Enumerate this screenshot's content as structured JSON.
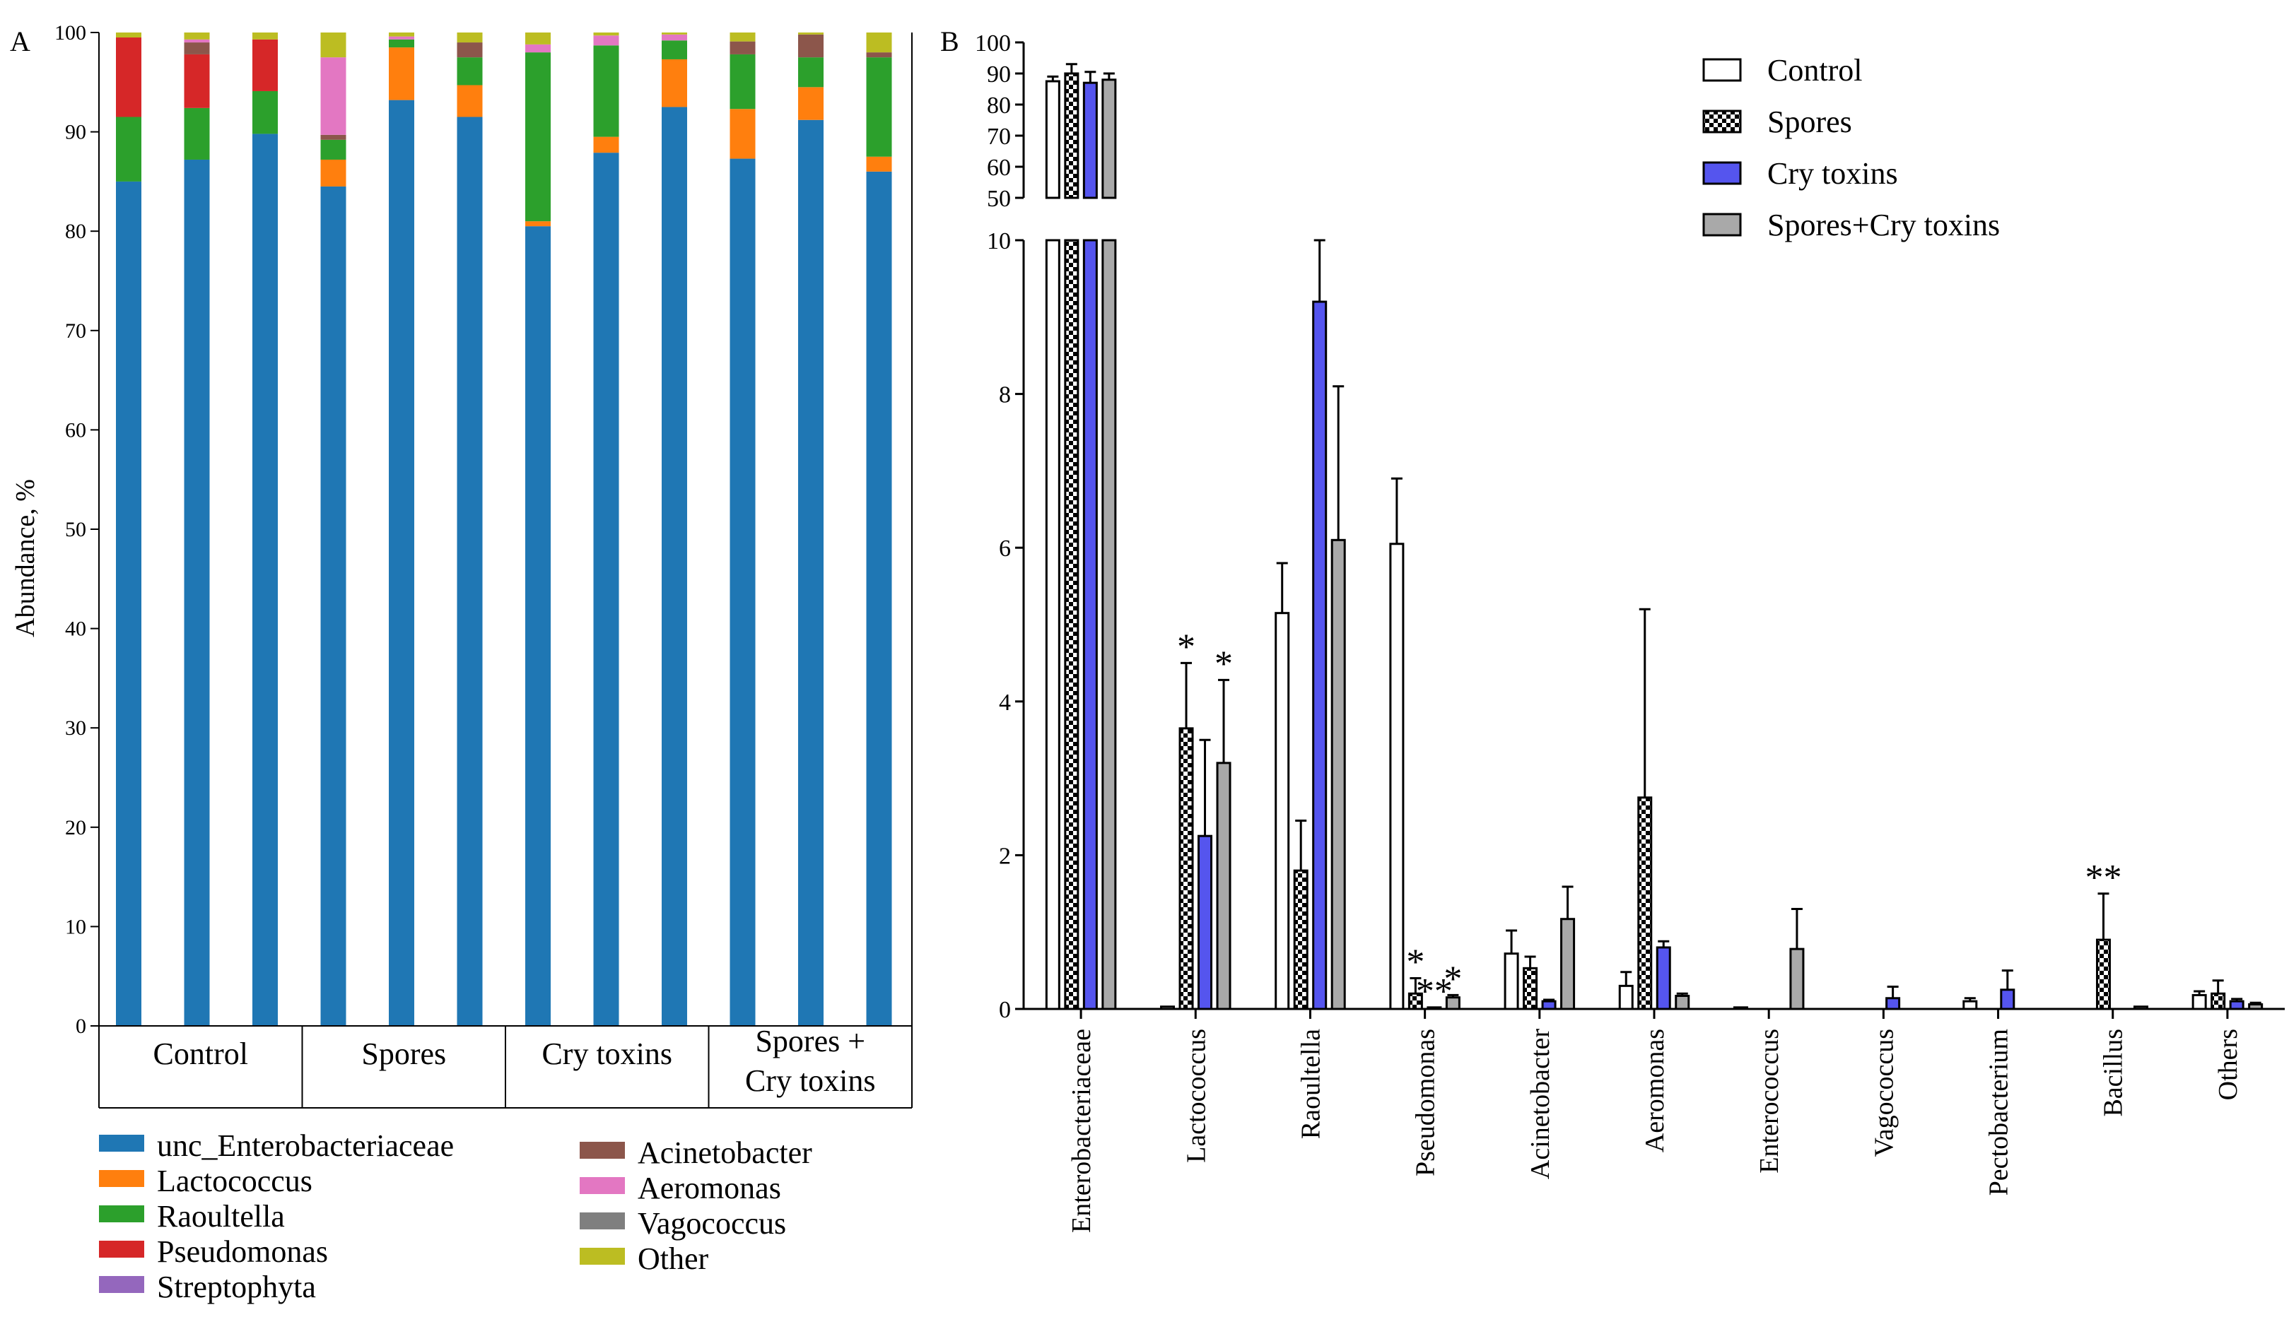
{
  "colors": {
    "unc_Enterobacteriaceae": "#1f77b4",
    "Lactococcus": "#ff7f0e",
    "Raoultella": "#2ca02c",
    "Pseudomonas": "#d62728",
    "Streptophyta": "#9467bd",
    "Acinetobacter": "#8c564b",
    "Aeromonas": "#e377c2",
    "Vagococcus": "#7f7f7f",
    "Other": "#bcbd22",
    "Control": "#ffffff",
    "Spores": "pattern-checker",
    "Cry toxins": "#5555ee",
    "Spores+Cry toxins": "#a9a9a9"
  },
  "chart_data": [
    {
      "panel": "A",
      "type": "bar",
      "stacked": true,
      "title": "",
      "ylabel": "Abundance, %",
      "ylim": [
        0,
        100
      ],
      "yticks": [
        "0",
        "10",
        "20",
        "30",
        "40",
        "50",
        "60",
        "70",
        "80",
        "90",
        "100"
      ],
      "groups": [
        "Control",
        "Spores",
        "Cry toxins",
        "Spores +\nCry toxins"
      ],
      "group_lines": [
        [
          "Control"
        ],
        [
          "Spores"
        ],
        [
          "Cry toxins"
        ],
        [
          "Spores +",
          "Cry toxins"
        ]
      ],
      "legend": [
        "unc_Enterobacteriaceae",
        "Lactococcus",
        "Raoultella",
        "Pseudomonas",
        "Streptophyta",
        "Acinetobacter",
        "Aeromonas",
        "Vagococcus",
        "Other"
      ],
      "legend_position": "bottom",
      "stack_order": [
        "unc_Enterobacteriaceae",
        "Lactococcus",
        "Raoultella",
        "Pseudomonas",
        "Streptophyta",
        "Acinetobacter",
        "Aeromonas",
        "Vagococcus",
        "Other"
      ],
      "bars": [
        {
          "group": 0,
          "values": [
            85.0,
            0.0,
            6.5,
            8.0,
            0.0,
            0.0,
            0.0,
            0.0,
            0.5
          ]
        },
        {
          "group": 0,
          "values": [
            87.2,
            0.0,
            5.2,
            5.4,
            0.0,
            1.2,
            0.3,
            0.0,
            0.7
          ]
        },
        {
          "group": 0,
          "values": [
            89.8,
            0.0,
            4.3,
            5.2,
            0.0,
            0.0,
            0.0,
            0.0,
            0.7
          ]
        },
        {
          "group": 1,
          "values": [
            84.5,
            2.7,
            2.0,
            0.0,
            0.0,
            0.5,
            7.8,
            0.0,
            2.5
          ]
        },
        {
          "group": 1,
          "values": [
            93.2,
            5.3,
            0.8,
            0.0,
            0.0,
            0.0,
            0.3,
            0.0,
            0.4
          ]
        },
        {
          "group": 1,
          "values": [
            91.5,
            3.2,
            2.8,
            0.0,
            0.0,
            1.5,
            0.0,
            0.0,
            1.0
          ]
        },
        {
          "group": 2,
          "values": [
            80.5,
            0.5,
            17.0,
            0.0,
            0.0,
            0.0,
            0.8,
            0.0,
            1.2
          ]
        },
        {
          "group": 2,
          "values": [
            87.9,
            1.6,
            9.2,
            0.0,
            0.0,
            0.0,
            1.0,
            0.0,
            0.3
          ]
        },
        {
          "group": 2,
          "values": [
            92.5,
            4.8,
            1.9,
            0.0,
            0.0,
            0.0,
            0.6,
            0.0,
            0.2
          ]
        },
        {
          "group": 3,
          "values": [
            87.3,
            5.0,
            5.5,
            0.0,
            0.0,
            1.3,
            0.0,
            0.0,
            0.9
          ]
        },
        {
          "group": 3,
          "values": [
            91.2,
            3.3,
            3.0,
            0.0,
            0.0,
            2.3,
            0.0,
            0.0,
            0.2
          ]
        },
        {
          "group": 3,
          "values": [
            86.0,
            1.5,
            10.0,
            0.0,
            0.0,
            0.5,
            0.0,
            0.0,
            2.0
          ]
        }
      ]
    },
    {
      "panel": "B",
      "type": "bar",
      "broken_axis": true,
      "title": "",
      "ylabel": "",
      "series_names": [
        "Control",
        "Spores",
        "Cry toxins",
        "Spores+Cry toxins"
      ],
      "legend_position": "top-right",
      "upper_ylim": [
        50,
        100
      ],
      "upper_yticks": [
        "50",
        "60",
        "70",
        "80",
        "90",
        "100"
      ],
      "lower_ylim": [
        0,
        10
      ],
      "lower_yticks": [
        "0",
        "2",
        "4",
        "6",
        "8",
        "10"
      ],
      "categories": [
        "Enterobacteriaceae",
        "Lactococcus",
        "Raoultella",
        "Pseudomonas",
        "Acinetobacter",
        "Aeromonas",
        "Enterococcus",
        "Vagococcus",
        "Pectobacterium",
        "Bacillus",
        "Others"
      ],
      "series": [
        {
          "name": "Control",
          "values": [
            87.5,
            0.03,
            5.15,
            6.05,
            0.72,
            0.3,
            0.02,
            0.0,
            0.1,
            0.0,
            0.18
          ],
          "errors": [
            1.5,
            0.0,
            0.65,
            0.85,
            0.3,
            0.18,
            0.0,
            0.0,
            0.04,
            0.0,
            0.05
          ]
        },
        {
          "name": "Spores",
          "values": [
            90.0,
            3.65,
            1.8,
            0.2,
            0.53,
            2.75,
            0.0,
            0.0,
            0.0,
            0.9,
            0.2
          ],
          "errors": [
            3.0,
            0.85,
            0.65,
            0.2,
            0.15,
            2.45,
            0.0,
            0.0,
            0.0,
            0.6,
            0.17
          ]
        },
        {
          "name": "Cry toxins",
          "values": [
            87.0,
            2.25,
            9.2,
            0.02,
            0.1,
            0.8,
            0.0,
            0.14,
            0.25,
            0.0,
            0.1
          ],
          "errors": [
            3.5,
            1.25,
            0.8,
            0.0,
            0.02,
            0.08,
            0.0,
            0.15,
            0.25,
            0.0,
            0.03
          ]
        },
        {
          "name": "Spores+Cry toxins",
          "values": [
            88.0,
            3.2,
            6.1,
            0.15,
            1.17,
            0.17,
            0.78,
            0.0,
            0.0,
            0.03,
            0.06
          ],
          "errors": [
            2.0,
            1.08,
            2.0,
            0.03,
            0.42,
            0.03,
            0.52,
            0.0,
            0.0,
            0.0,
            0.02
          ]
        }
      ],
      "annotations": [
        {
          "category": "Lactococcus",
          "series": "Spores",
          "text": "*"
        },
        {
          "category": "Lactococcus",
          "series": "Spores+Cry toxins",
          "text": "*"
        },
        {
          "category": "Pseudomonas",
          "series": "Spores",
          "text": "*"
        },
        {
          "category": "Pseudomonas",
          "series": "Cry toxins",
          "text": "**"
        },
        {
          "category": "Pseudomonas",
          "series": "Spores+Cry toxins",
          "text": "*"
        },
        {
          "category": "Bacillus",
          "series": "Spores",
          "text": "**"
        }
      ]
    }
  ],
  "panel_labels": {
    "a": "A",
    "b": "B"
  }
}
